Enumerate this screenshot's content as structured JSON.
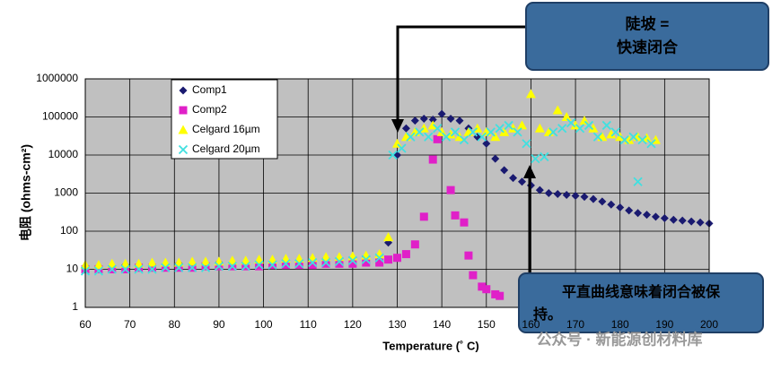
{
  "chart_data": {
    "type": "scatter",
    "title": null,
    "x_label": "Temperature (˚ C)",
    "y_label": "电阻 (ohms-cm²)",
    "xlim": [
      60,
      200
    ],
    "xticks": [
      60,
      70,
      80,
      90,
      100,
      110,
      120,
      130,
      140,
      150,
      160,
      170,
      180,
      190,
      200
    ],
    "ylim": [
      1,
      1000000
    ],
    "yticks": [
      1,
      10,
      100,
      1000,
      10000,
      100000,
      1000000
    ],
    "log_y": true,
    "grid": true,
    "legend": "upper left",
    "series": [
      {
        "name": "Comp1",
        "color": "#1a1a70",
        "marker": "diamond",
        "x": [
          60,
          63,
          66,
          69,
          72,
          75,
          78,
          81,
          84,
          87,
          90,
          93,
          96,
          99,
          102,
          105,
          108,
          111,
          114,
          117,
          120,
          123,
          126,
          128,
          130,
          132,
          134,
          136,
          138,
          140,
          142,
          144,
          146,
          148,
          150,
          152,
          154,
          156,
          158,
          160,
          162,
          164,
          166,
          168,
          170,
          172,
          174,
          176,
          178,
          180,
          182,
          184,
          186,
          188,
          190,
          192,
          194,
          196,
          198,
          200
        ],
        "values": [
          12,
          12,
          12,
          13,
          13,
          13,
          13,
          14,
          14,
          14,
          15,
          15,
          15,
          16,
          16,
          17,
          17,
          18,
          19,
          19,
          20,
          21,
          22,
          50,
          10000,
          50000,
          80000,
          90000,
          85000,
          120000,
          90000,
          80000,
          50000,
          30000,
          20000,
          8000,
          4000,
          2500,
          2000,
          1600,
          1200,
          1000,
          950,
          900,
          850,
          800,
          700,
          600,
          500,
          420,
          350,
          300,
          270,
          240,
          220,
          200,
          190,
          180,
          170,
          160
        ]
      },
      {
        "name": "Comp2",
        "color": "#e020c8",
        "marker": "square",
        "x": [
          60,
          63,
          66,
          69,
          72,
          75,
          78,
          81,
          84,
          87,
          90,
          93,
          96,
          99,
          102,
          105,
          108,
          111,
          114,
          117,
          120,
          123,
          126,
          128,
          130,
          132,
          134,
          136,
          138,
          139,
          142,
          143,
          145,
          146,
          147,
          149,
          150,
          152,
          153
        ],
        "values": [
          10,
          10,
          10,
          10,
          11,
          11,
          11,
          11,
          11,
          12,
          12,
          12,
          12,
          12,
          13,
          13,
          13,
          13,
          14,
          14,
          14,
          15,
          15,
          18,
          20,
          25,
          45,
          240,
          7600,
          26000,
          1200,
          260,
          170,
          23,
          7,
          3.5,
          3,
          2.2,
          2
        ]
      },
      {
        "name": "Celgard 16µm",
        "color": "#ffff00",
        "marker": "triangle",
        "x": [
          60,
          63,
          66,
          69,
          72,
          75,
          78,
          81,
          84,
          87,
          90,
          93,
          96,
          99,
          102,
          105,
          108,
          111,
          114,
          117,
          120,
          123,
          126,
          128,
          130,
          132,
          134,
          136,
          138,
          140,
          142,
          144,
          146,
          148,
          150,
          152,
          154,
          156,
          158,
          160,
          162,
          164,
          166,
          168,
          170,
          172,
          174,
          176,
          178,
          180,
          182,
          184,
          186,
          188
        ],
        "values": [
          13,
          13,
          14,
          14,
          14,
          15,
          15,
          15,
          16,
          16,
          16,
          17,
          17,
          18,
          18,
          19,
          19,
          20,
          21,
          21,
          22,
          23,
          25,
          70,
          20000,
          30000,
          40000,
          50000,
          60000,
          40000,
          35000,
          30000,
          40000,
          50000,
          40000,
          30000,
          40000,
          50000,
          60000,
          400000,
          50000,
          40000,
          150000,
          100000,
          60000,
          80000,
          50000,
          30000,
          35000,
          30000,
          25000,
          30000,
          28000,
          25000
        ]
      },
      {
        "name": "Celgard 20µm",
        "color": "#40e0e0",
        "marker": "x",
        "x": [
          60,
          63,
          66,
          69,
          72,
          75,
          78,
          81,
          84,
          87,
          90,
          93,
          96,
          99,
          102,
          105,
          108,
          111,
          114,
          117,
          120,
          123,
          126,
          129,
          131,
          133,
          135,
          137,
          139,
          141,
          143,
          145,
          147,
          149,
          151,
          153,
          155,
          157,
          159,
          161,
          163,
          165,
          167,
          169,
          171,
          173,
          175,
          177,
          179,
          181,
          183,
          184,
          185,
          187
        ],
        "values": [
          9,
          9,
          10,
          10,
          10,
          10,
          11,
          11,
          11,
          11,
          12,
          12,
          12,
          13,
          13,
          14,
          14,
          15,
          15,
          16,
          17,
          18,
          20,
          10000,
          15000,
          30000,
          40000,
          30000,
          50000,
          30000,
          40000,
          25000,
          40000,
          30000,
          40000,
          50000,
          60000,
          40000,
          20000,
          8000,
          9000,
          40000,
          50000,
          70000,
          50000,
          60000,
          30000,
          60000,
          40000,
          25000,
          30000,
          2000,
          25000,
          20000
        ]
      }
    ],
    "callouts": [
      {
        "lines": [
          "陡坡 =",
          "快速闭合"
        ]
      },
      {
        "lines": [
          "平直曲线意味着闭合被保",
          "持。"
        ]
      }
    ],
    "watermark": "公众号 · 新能源创材料库"
  }
}
